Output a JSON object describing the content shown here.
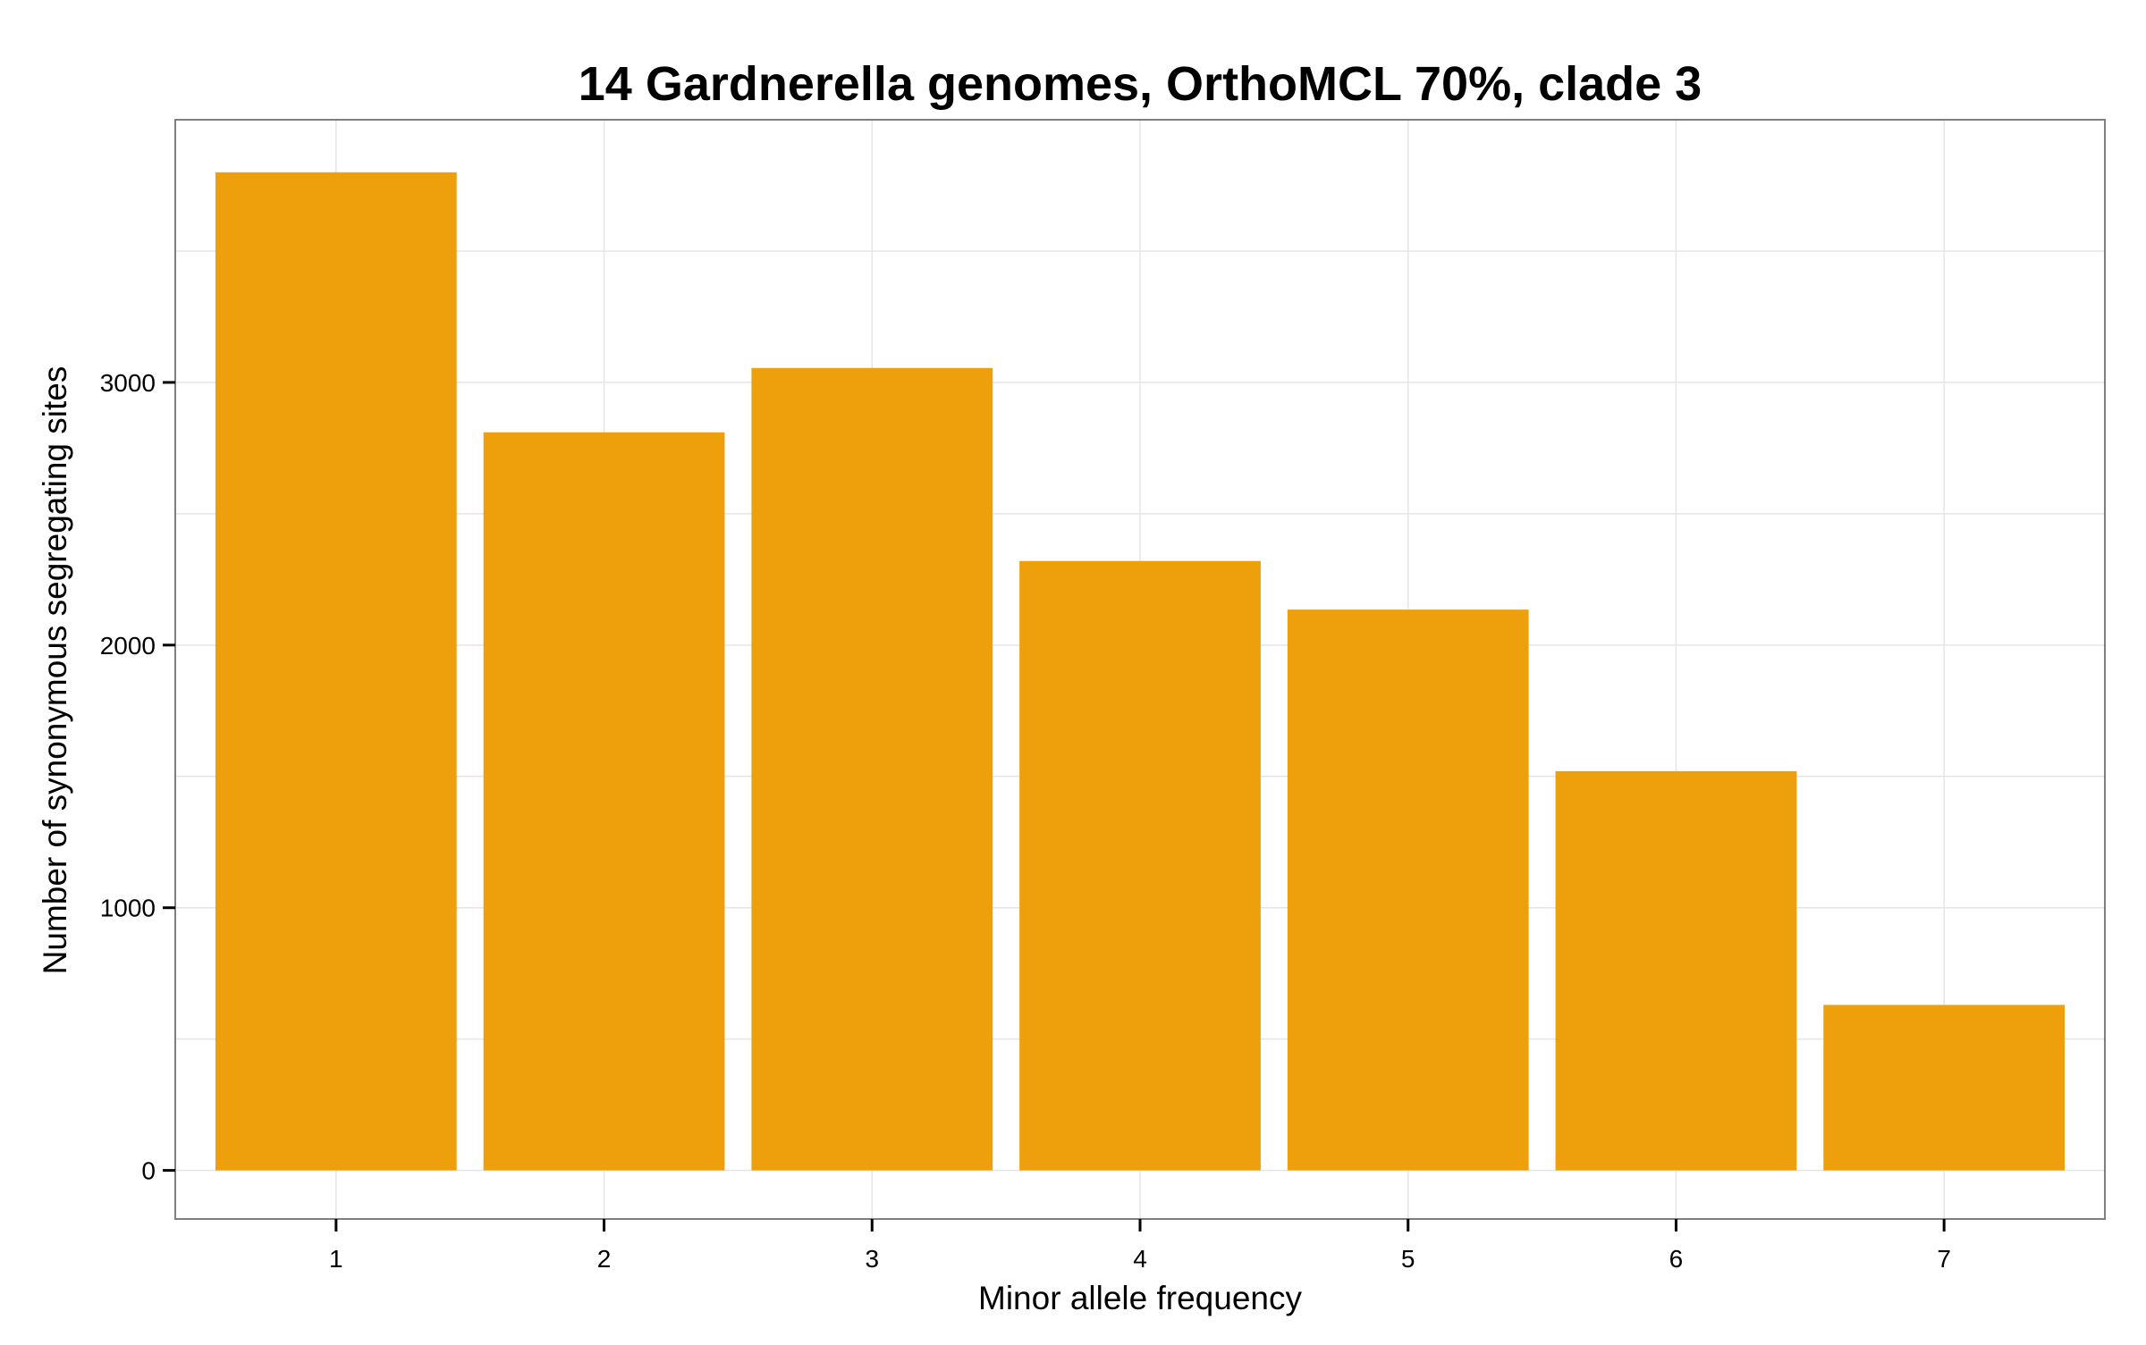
{
  "chart_data": {
    "type": "bar",
    "title": "14 Gardnerella genomes, OrthoMCL 70%, clade 3",
    "xlabel": "Minor allele frequency",
    "ylabel": "Number of synonymous segregating sites",
    "categories": [
      "1",
      "2",
      "3",
      "4",
      "5",
      "6",
      "7"
    ],
    "values": [
      3800,
      2810,
      3055,
      2320,
      2135,
      1520,
      630
    ],
    "ylim": [
      -185,
      4000
    ],
    "yticks": [
      0,
      1000,
      2000,
      3000
    ],
    "ytick_labels": [
      "0",
      "1000",
      "2000",
      "3000"
    ],
    "grid": true,
    "legend": "none",
    "bar_color": "#EDA00B",
    "grid_color": "#E5E5E5",
    "panel_border_color": "#7F7F7F"
  }
}
